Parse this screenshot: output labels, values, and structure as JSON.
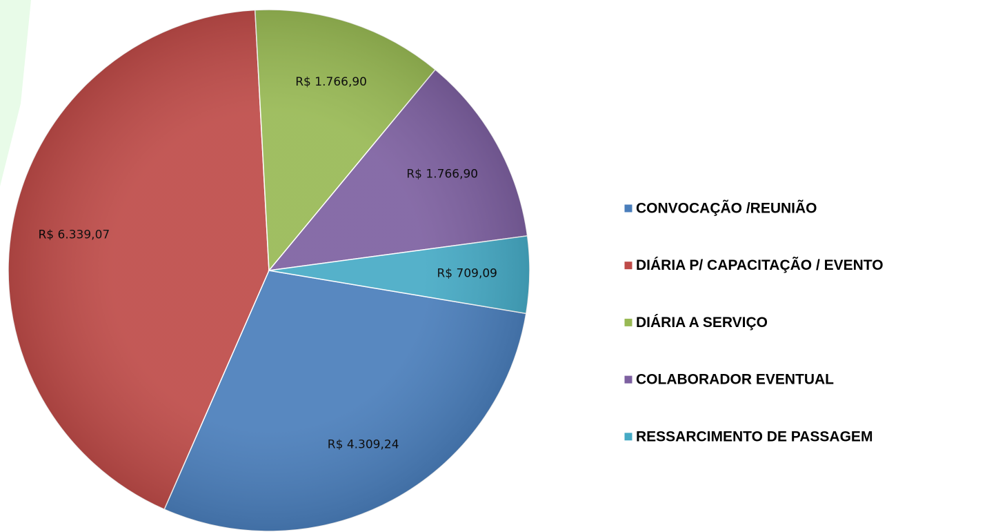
{
  "chart_data": {
    "type": "pie",
    "categories": [
      "CONVOCAÇÃO /REUNIÃO",
      "DIÁRIA P/ CAPACITAÇÃO / EVENTO",
      "DIÁRIA A SERVIÇO",
      "COLABORADOR EVENTUAL",
      "RESSARCIMENTO DE PASSAGEM"
    ],
    "values": [
      4309.24,
      6339.07,
      1766.9,
      1766.9,
      709.09
    ],
    "value_labels": [
      "R$ 4.309,24",
      "R$ 6.339,07",
      "R$ 1.766,90",
      "R$ 1.766,90",
      "R$ 709,09"
    ],
    "colors": [
      "#4a7ebb",
      "#be4b48",
      "#98b954",
      "#7d60a0",
      "#46aac5"
    ],
    "legend": "right"
  }
}
